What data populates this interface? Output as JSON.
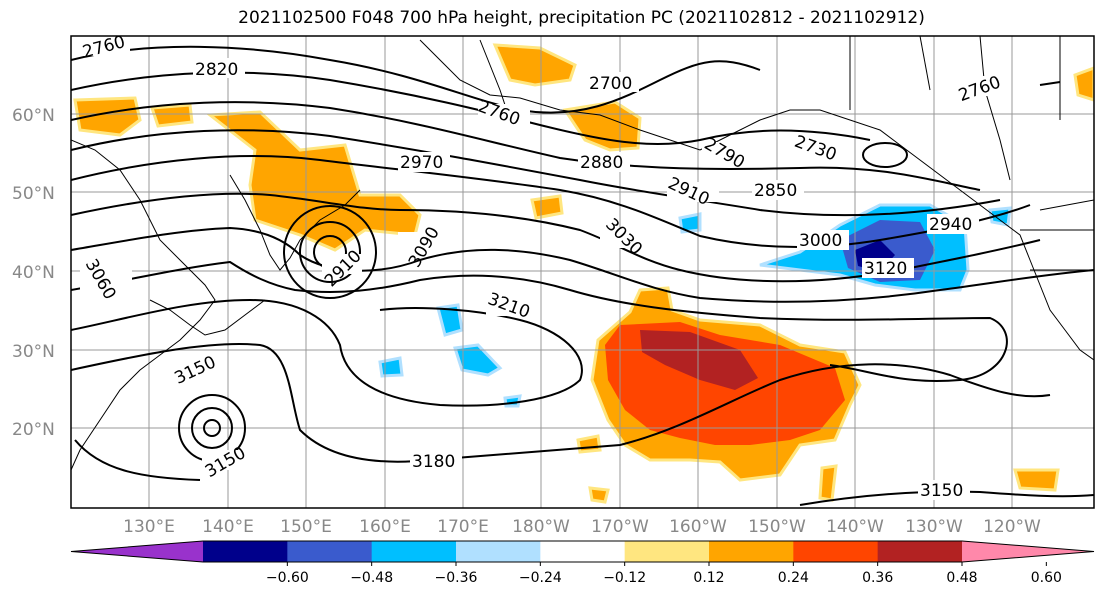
{
  "title": "2021102500 F048 700 hPa height, precipitation PC (2021102812 - 2021102912)",
  "lat_labels": [
    "60°N",
    "50°N",
    "40°N",
    "30°N",
    "20°N"
  ],
  "lon_labels": [
    "130°E",
    "140°E",
    "150°E",
    "160°E",
    "170°E",
    "180°W",
    "170°W",
    "160°W",
    "150°W",
    "140°W",
    "130°W",
    "120°W"
  ],
  "contour_labels": [
    "2760",
    "2820",
    "2700",
    "2760",
    "2880",
    "2970",
    "2790",
    "2730",
    "2850",
    "2910",
    "2760",
    "3090",
    "3030",
    "3000",
    "2940",
    "2910",
    "3120",
    "3060",
    "3210",
    "3150",
    "3150",
    "3180",
    "3150"
  ],
  "colorbar": {
    "ticks": [
      "−0.60",
      "−0.48",
      "−0.36",
      "−0.24",
      "−0.12",
      "0.12",
      "0.24",
      "0.36",
      "0.48",
      "0.60"
    ],
    "colors": [
      "#9932cc",
      "#00008b",
      "#3a5bcd",
      "#00bfff",
      "#b0e0ff",
      "#ffffff",
      "#ffe680",
      "#ffa500",
      "#ff4500",
      "#b22222",
      "#ff88aa"
    ]
  }
}
